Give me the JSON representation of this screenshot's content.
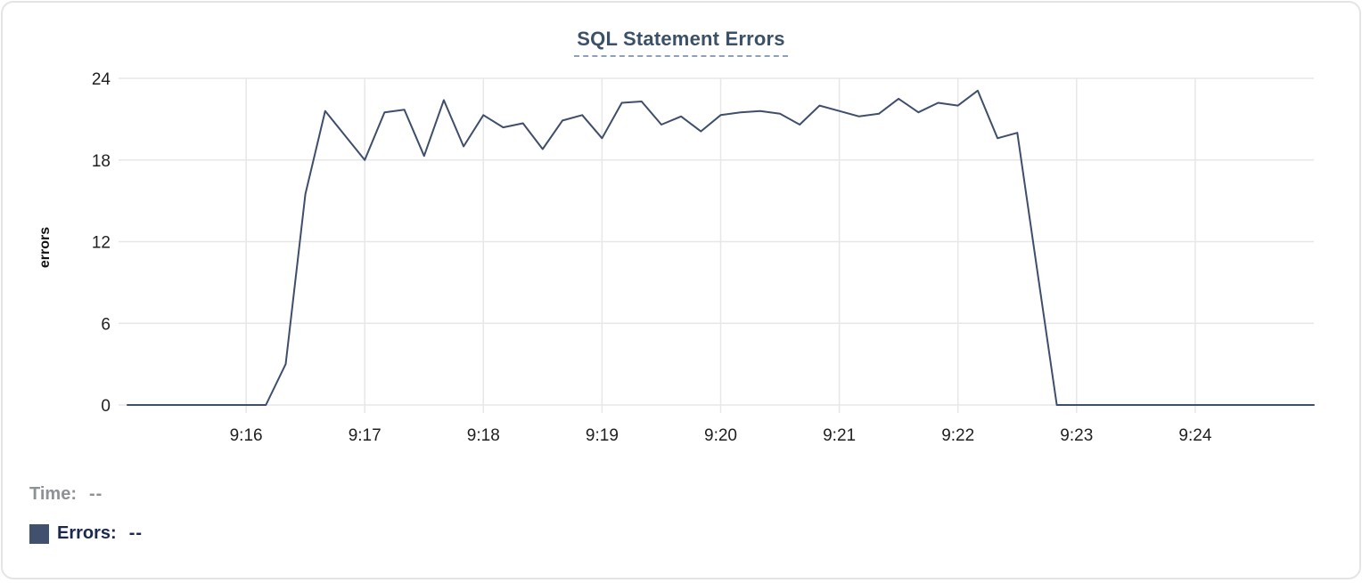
{
  "colors": {
    "line": "#3e4e6b",
    "swatch": "#41506d",
    "title": "#3c5067",
    "title_underline": "#8fa0ba",
    "grid": "#e7e7e7",
    "tick_text": "#1f1f1f",
    "time_text": "#8e9196",
    "errors_text": "#1b2950",
    "card_border": "#e4e4e7"
  },
  "tooltip": {
    "time_label": "Time:",
    "time_value": "--",
    "series_label": "Errors:",
    "series_value": "--"
  },
  "chart_data": {
    "type": "line",
    "title": "SQL Statement Errors",
    "xlabel": "",
    "ylabel": "errors",
    "ylim": [
      0,
      24
    ],
    "y_ticks": [
      0,
      6,
      12,
      18,
      24
    ],
    "x_domain_seconds": 600,
    "x_start": "9:15:00",
    "x_end": "9:25:00",
    "sample_interval_seconds": 10,
    "grid": true,
    "legend_position": "bottom-left",
    "x_ticks": [
      {
        "label": "9:16",
        "sec": 60
      },
      {
        "label": "9:17",
        "sec": 120
      },
      {
        "label": "9:18",
        "sec": 180
      },
      {
        "label": "9:19",
        "sec": 240
      },
      {
        "label": "9:20",
        "sec": 300
      },
      {
        "label": "9:21",
        "sec": 360
      },
      {
        "label": "9:22",
        "sec": 420
      },
      {
        "label": "9:23",
        "sec": 480
      },
      {
        "label": "9:24",
        "sec": 540
      }
    ],
    "series": [
      {
        "name": "Errors",
        "color": "#3e4e6b",
        "times": [
          "9:15:00",
          "9:15:10",
          "9:15:20",
          "9:15:30",
          "9:15:40",
          "9:15:50",
          "9:16:00",
          "9:16:10",
          "9:16:20",
          "9:16:30",
          "9:16:40",
          "9:16:50",
          "9:17:00",
          "9:17:10",
          "9:17:20",
          "9:17:30",
          "9:17:40",
          "9:17:50",
          "9:18:00",
          "9:18:10",
          "9:18:20",
          "9:18:30",
          "9:18:40",
          "9:18:50",
          "9:19:00",
          "9:19:10",
          "9:19:20",
          "9:19:30",
          "9:19:40",
          "9:19:50",
          "9:20:00",
          "9:20:10",
          "9:20:20",
          "9:20:30",
          "9:20:40",
          "9:20:50",
          "9:21:00",
          "9:21:10",
          "9:21:20",
          "9:21:30",
          "9:21:40",
          "9:21:50",
          "9:22:00",
          "9:22:10",
          "9:22:20",
          "9:22:30",
          "9:22:40",
          "9:22:50",
          "9:23:00",
          "9:23:10",
          "9:23:20",
          "9:23:30",
          "9:23:40",
          "9:23:50",
          "9:24:00",
          "9:24:10",
          "9:24:20",
          "9:24:30",
          "9:24:40",
          "9:24:50",
          "9:25:00"
        ],
        "values": [
          0,
          0,
          0,
          0,
          0,
          0,
          0,
          0,
          3,
          15.5,
          21.6,
          19.8,
          18,
          21.5,
          21.7,
          18.3,
          22.4,
          19,
          21.3,
          20.4,
          20.7,
          18.8,
          20.9,
          21.3,
          19.6,
          22.2,
          22.3,
          20.6,
          21.2,
          20.1,
          21.3,
          21.5,
          21.6,
          21.4,
          20.6,
          22,
          21.6,
          21.2,
          21.4,
          22.5,
          21.5,
          22.2,
          22,
          23.1,
          19.6,
          20,
          10,
          0,
          0,
          0,
          0,
          0,
          0,
          0,
          0,
          0,
          0,
          0,
          0,
          0,
          0
        ]
      }
    ]
  }
}
